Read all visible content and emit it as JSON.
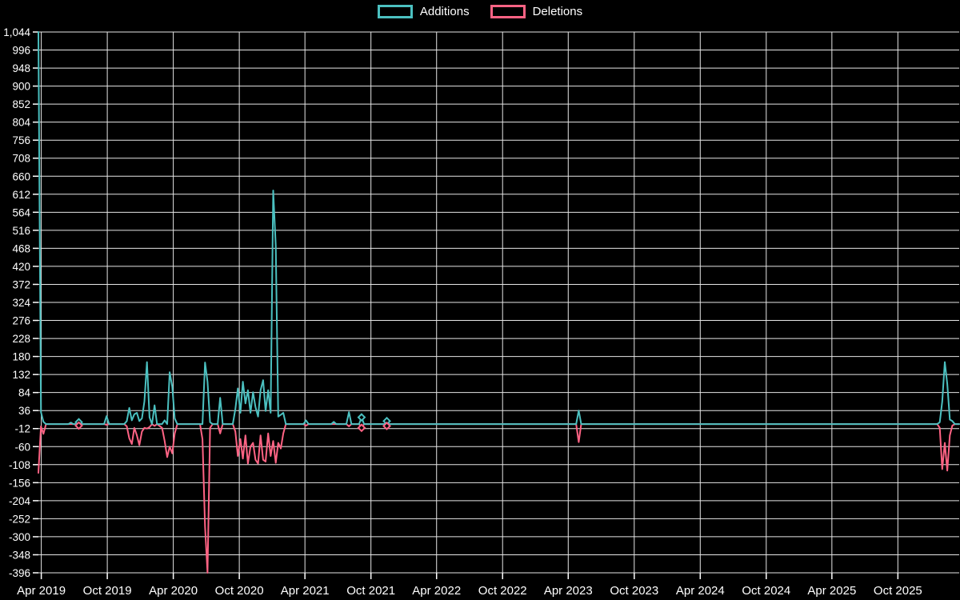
{
  "page": {
    "background": "#000000",
    "text_color": "#ffffff",
    "grid_color": "#e6e6e6"
  },
  "legend": [
    {
      "label": "Additions",
      "color": "#4BC0C0"
    },
    {
      "label": "Deletions",
      "color": "#FF6384"
    }
  ],
  "chart_data": {
    "type": "line",
    "title": "",
    "xlabel": "",
    "ylabel": "",
    "legend_position": "top-center",
    "grid": true,
    "ylim": [
      -396,
      1044
    ],
    "y_tick_step": 48,
    "x_domain": [
      "2019-03-24",
      "2026-03-20"
    ],
    "y_ticks": [
      {
        "v": 1044,
        "label": "1,044"
      },
      {
        "v": 996,
        "label": "996"
      },
      {
        "v": 948,
        "label": "948"
      },
      {
        "v": 900,
        "label": "900"
      },
      {
        "v": 852,
        "label": "852"
      },
      {
        "v": 804,
        "label": "804"
      },
      {
        "v": 756,
        "label": "756"
      },
      {
        "v": 708,
        "label": "708"
      },
      {
        "v": 660,
        "label": "660"
      },
      {
        "v": 612,
        "label": "612"
      },
      {
        "v": 564,
        "label": "564"
      },
      {
        "v": 516,
        "label": "516"
      },
      {
        "v": 468,
        "label": "468"
      },
      {
        "v": 420,
        "label": "420"
      },
      {
        "v": 372,
        "label": "372"
      },
      {
        "v": 324,
        "label": "324"
      },
      {
        "v": 276,
        "label": "276"
      },
      {
        "v": 228,
        "label": "228"
      },
      {
        "v": 180,
        "label": "180"
      },
      {
        "v": 132,
        "label": "132"
      },
      {
        "v": 84,
        "label": "84"
      },
      {
        "v": 36,
        "label": "36"
      },
      {
        "v": -12,
        "label": "-12"
      },
      {
        "v": -60,
        "label": "-60"
      },
      {
        "v": -108,
        "label": "-108"
      },
      {
        "v": -156,
        "label": "-156"
      },
      {
        "v": -204,
        "label": "-204"
      },
      {
        "v": -252,
        "label": "-252"
      },
      {
        "v": -300,
        "label": "-300"
      },
      {
        "v": -348,
        "label": "-348"
      },
      {
        "v": -396,
        "label": "-396"
      }
    ],
    "x_ticks": [
      {
        "label": "Apr 2019",
        "date": "2019-04-01"
      },
      {
        "label": "Oct 2019",
        "date": "2019-10-01"
      },
      {
        "label": "Apr 2020",
        "date": "2020-04-01"
      },
      {
        "label": "Oct 2020",
        "date": "2020-10-01"
      },
      {
        "label": "Apr 2021",
        "date": "2021-04-01"
      },
      {
        "label": "Oct 2021",
        "date": "2021-10-01"
      },
      {
        "label": "Apr 2022",
        "date": "2022-04-01"
      },
      {
        "label": "Oct 2022",
        "date": "2022-10-01"
      },
      {
        "label": "Apr 2023",
        "date": "2023-04-01"
      },
      {
        "label": "Oct 2023",
        "date": "2023-10-01"
      },
      {
        "label": "Apr 2024",
        "date": "2024-04-01"
      },
      {
        "label": "Oct 2024",
        "date": "2024-10-01"
      },
      {
        "label": "Apr 2025",
        "date": "2025-04-01"
      },
      {
        "label": "Oct 2025",
        "date": "2025-10-01"
      }
    ],
    "series": [
      {
        "name": "Additions",
        "color": "#4BC0C0",
        "idx": 1
      },
      {
        "name": "Deletions",
        "color": "#FF6384",
        "idx": 2
      }
    ],
    "marker_dates": [
      "2019-07-14",
      "2021-09-05",
      "2021-11-14"
    ],
    "points_format": [
      "week_date",
      "additions",
      "deletions"
    ],
    "points": [
      [
        "2019-03-24",
        1044,
        -130
      ],
      [
        "2019-03-31",
        32,
        -6
      ],
      [
        "2019-04-07",
        6,
        -26
      ],
      [
        "2019-04-14",
        0,
        0
      ],
      [
        "2019-06-15",
        0,
        0
      ],
      [
        "2019-06-22",
        4,
        0
      ],
      [
        "2019-06-29",
        0,
        0
      ],
      [
        "2019-07-07",
        0,
        0
      ],
      [
        "2019-07-14",
        5,
        -4
      ],
      [
        "2019-07-21",
        0,
        0
      ],
      [
        "2019-09-22",
        0,
        0
      ],
      [
        "2019-09-29",
        21,
        -2
      ],
      [
        "2019-10-06",
        0,
        0
      ],
      [
        "2019-11-17",
        0,
        0
      ],
      [
        "2019-11-24",
        8,
        -6
      ],
      [
        "2019-12-01",
        43,
        -38
      ],
      [
        "2019-12-08",
        10,
        -53
      ],
      [
        "2019-12-15",
        26,
        -10
      ],
      [
        "2019-12-22",
        30,
        -30
      ],
      [
        "2019-12-29",
        8,
        -56
      ],
      [
        "2020-01-05",
        15,
        -20
      ],
      [
        "2020-01-12",
        60,
        -10
      ],
      [
        "2020-01-19",
        165,
        -12
      ],
      [
        "2020-01-26",
        18,
        -8
      ],
      [
        "2020-02-02",
        0,
        0
      ],
      [
        "2020-02-09",
        50,
        -5
      ],
      [
        "2020-02-16",
        0,
        0
      ],
      [
        "2020-03-01",
        0,
        -10
      ],
      [
        "2020-03-08",
        10,
        -45
      ],
      [
        "2020-03-15",
        0,
        -88
      ],
      [
        "2020-03-22",
        138,
        -60
      ],
      [
        "2020-03-29",
        100,
        -78
      ],
      [
        "2020-04-05",
        15,
        -25
      ],
      [
        "2020-04-12",
        0,
        0
      ],
      [
        "2020-06-14",
        0,
        0
      ],
      [
        "2020-06-21",
        0,
        -40
      ],
      [
        "2020-06-28",
        164,
        -273
      ],
      [
        "2020-07-05",
        113,
        -396
      ],
      [
        "2020-07-12",
        5,
        -10
      ],
      [
        "2020-07-19",
        0,
        0
      ],
      [
        "2020-08-02",
        0,
        0
      ],
      [
        "2020-08-09",
        70,
        -25
      ],
      [
        "2020-08-16",
        0,
        0
      ],
      [
        "2020-09-13",
        0,
        0
      ],
      [
        "2020-09-20",
        40,
        -20
      ],
      [
        "2020-09-27",
        95,
        -85
      ],
      [
        "2020-10-04",
        30,
        -40
      ],
      [
        "2020-10-11",
        113,
        -92
      ],
      [
        "2020-10-18",
        55,
        -30
      ],
      [
        "2020-10-25",
        90,
        -105
      ],
      [
        "2020-11-01",
        30,
        -60
      ],
      [
        "2020-11-08",
        85,
        -50
      ],
      [
        "2020-11-15",
        45,
        -95
      ],
      [
        "2020-11-22",
        20,
        -105
      ],
      [
        "2020-11-29",
        90,
        -30
      ],
      [
        "2020-12-06",
        117,
        -95
      ],
      [
        "2020-12-13",
        35,
        -100
      ],
      [
        "2020-12-20",
        90,
        -25
      ],
      [
        "2020-12-27",
        30,
        -85
      ],
      [
        "2021-01-03",
        622,
        -45
      ],
      [
        "2021-01-10",
        475,
        -103
      ],
      [
        "2021-01-17",
        20,
        -50
      ],
      [
        "2021-01-24",
        25,
        -65
      ],
      [
        "2021-01-31",
        30,
        -25
      ],
      [
        "2021-02-07",
        0,
        0
      ],
      [
        "2021-03-28",
        0,
        0
      ],
      [
        "2021-04-04",
        10,
        -4
      ],
      [
        "2021-04-11",
        0,
        0
      ],
      [
        "2021-06-13",
        0,
        0
      ],
      [
        "2021-06-20",
        6,
        0
      ],
      [
        "2021-06-27",
        0,
        0
      ],
      [
        "2021-07-25",
        0,
        0
      ],
      [
        "2021-08-01",
        32,
        -6
      ],
      [
        "2021-08-08",
        0,
        0
      ],
      [
        "2021-08-29",
        0,
        0
      ],
      [
        "2021-09-05",
        18,
        -10
      ],
      [
        "2021-09-12",
        0,
        0
      ],
      [
        "2021-11-07",
        0,
        0
      ],
      [
        "2021-11-14",
        8,
        -5
      ],
      [
        "2021-11-21",
        0,
        0
      ],
      [
        "2023-04-23",
        0,
        0
      ],
      [
        "2023-04-30",
        36,
        -48
      ],
      [
        "2023-05-07",
        0,
        0
      ],
      [
        "2026-01-18",
        0,
        0
      ],
      [
        "2026-01-25",
        5,
        -10
      ],
      [
        "2026-02-01",
        60,
        -120
      ],
      [
        "2026-02-08",
        165,
        -50
      ],
      [
        "2026-02-15",
        107,
        -124
      ],
      [
        "2026-02-22",
        12,
        -30
      ],
      [
        "2026-03-01",
        8,
        -4
      ],
      [
        "2026-03-08",
        0,
        0
      ],
      [
        "2026-03-20",
        0,
        0
      ]
    ]
  }
}
